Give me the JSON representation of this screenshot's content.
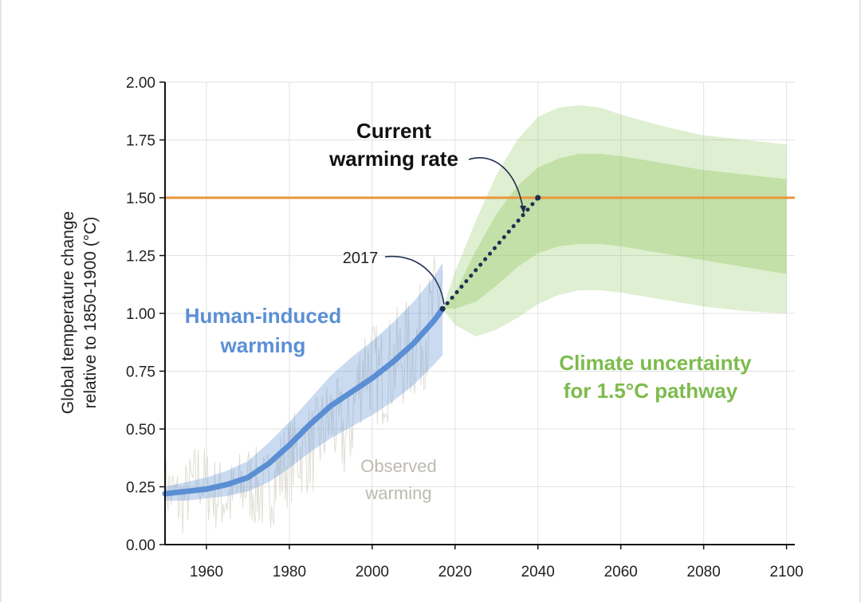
{
  "chart_data": {
    "type": "area",
    "ylabel_line1": "Global temperature change",
    "ylabel_line2": "relative to 1850-1900 (°C)",
    "xlim": [
      1950,
      2102
    ],
    "ylim": [
      0,
      2.0
    ],
    "x_ticks": [
      1960,
      1980,
      2000,
      2020,
      2040,
      2060,
      2080,
      2100
    ],
    "y_ticks": [
      "0.00",
      "0.25",
      "0.50",
      "0.75",
      "1.00",
      "1.25",
      "1.50",
      "1.75",
      "2.00"
    ],
    "threshold": {
      "value": 1.5,
      "label": "1.50",
      "color": "#e8973a"
    },
    "grid": true,
    "series": [
      {
        "name": "Human-induced warming",
        "color": "#5b8fd4",
        "x": [
          1950,
          1955,
          1960,
          1965,
          1970,
          1975,
          1980,
          1985,
          1990,
          1995,
          2000,
          2005,
          2010,
          2015,
          2017
        ],
        "y": [
          0.22,
          0.23,
          0.24,
          0.26,
          0.29,
          0.35,
          0.43,
          0.52,
          0.6,
          0.66,
          0.72,
          0.79,
          0.87,
          0.97,
          1.02
        ],
        "lower": [
          0.19,
          0.19,
          0.2,
          0.21,
          0.23,
          0.27,
          0.33,
          0.4,
          0.46,
          0.51,
          0.56,
          0.62,
          0.69,
          0.78,
          0.82
        ],
        "upper": [
          0.25,
          0.27,
          0.29,
          0.32,
          0.36,
          0.44,
          0.53,
          0.63,
          0.73,
          0.81,
          0.88,
          0.96,
          1.05,
          1.16,
          1.22
        ]
      },
      {
        "name": "Current warming rate",
        "color": "#1f2f52",
        "x": [
          2017,
          2040
        ],
        "y": [
          1.02,
          1.5
        ]
      }
    ],
    "observed": {
      "color": "#d8d6cc",
      "x": [
        1950,
        1954,
        1958,
        1962,
        1966,
        1970,
        1974,
        1978,
        1982,
        1986,
        1990,
        1994,
        1998,
        2002,
        2006,
        2010,
        2014,
        2017
      ],
      "y": [
        0.25,
        0.18,
        0.3,
        0.22,
        0.2,
        0.27,
        0.22,
        0.32,
        0.4,
        0.42,
        0.55,
        0.45,
        0.8,
        0.72,
        0.8,
        0.85,
        0.95,
        1.15
      ]
    },
    "uncertainty": {
      "color": "#8bc65a",
      "x": [
        2017,
        2020,
        2025,
        2030,
        2035,
        2040,
        2045,
        2050,
        2055,
        2060,
        2070,
        2080,
        2090,
        2100
      ],
      "outer_lower": [
        1.02,
        0.95,
        0.9,
        0.93,
        0.98,
        1.04,
        1.08,
        1.1,
        1.1,
        1.09,
        1.06,
        1.03,
        1.01,
        1.0
      ],
      "outer_upper": [
        1.02,
        1.18,
        1.4,
        1.6,
        1.75,
        1.85,
        1.89,
        1.9,
        1.89,
        1.86,
        1.81,
        1.77,
        1.75,
        1.73
      ],
      "inner_lower": [
        1.02,
        1.02,
        1.05,
        1.12,
        1.2,
        1.26,
        1.29,
        1.3,
        1.3,
        1.29,
        1.26,
        1.23,
        1.2,
        1.17
      ],
      "inner_upper": [
        1.02,
        1.09,
        1.27,
        1.43,
        1.55,
        1.63,
        1.67,
        1.69,
        1.69,
        1.68,
        1.65,
        1.62,
        1.6,
        1.58
      ]
    },
    "annotations": {
      "current_rate_line1": "Current",
      "current_rate_line2": "warming rate",
      "year_2017": "2017",
      "human_line1": "Human-induced",
      "human_line2": "warming",
      "observed_line1": "Observed",
      "observed_line2": "warming",
      "climate_line1": "Climate uncertainty",
      "climate_line2": "for 1.5°C pathway"
    }
  }
}
